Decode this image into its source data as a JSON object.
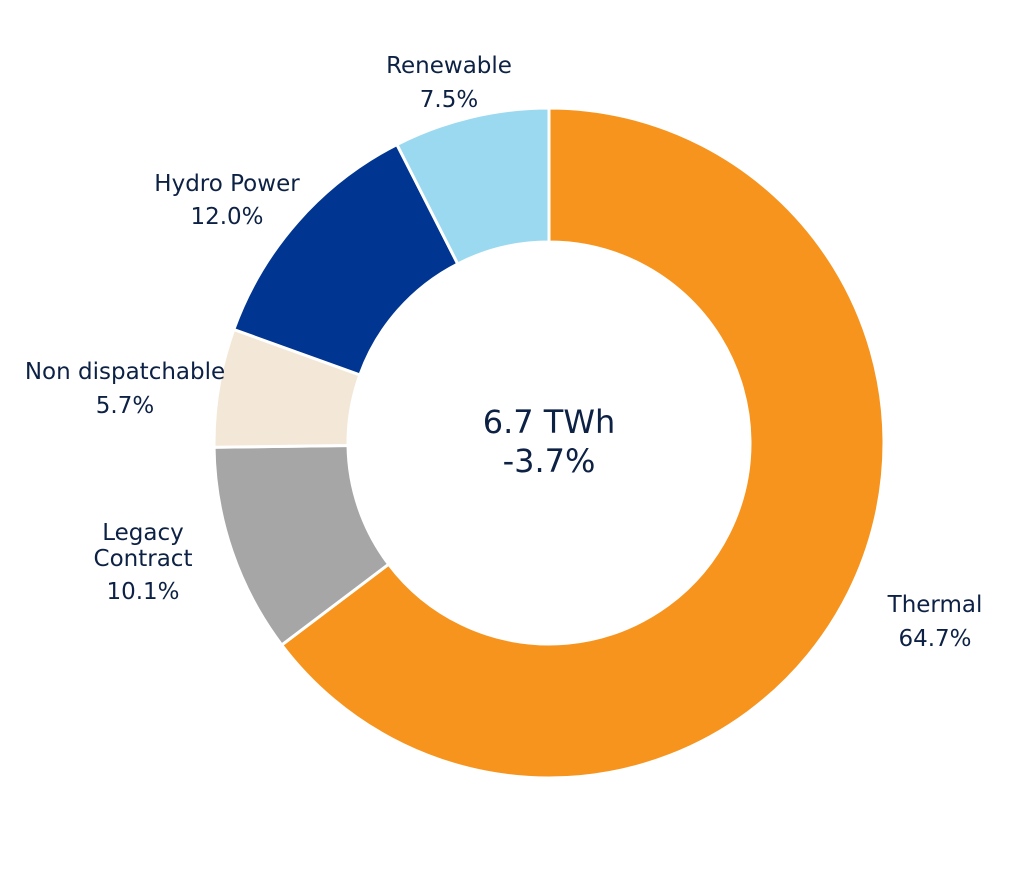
{
  "chart_data": {
    "type": "pie",
    "center_label": {
      "line1": "6.7 TWh",
      "line2": "-3.7%"
    },
    "slices": [
      {
        "name": "Thermal",
        "value": 64.7,
        "value_label": "64.7%",
        "color": "#f7941e"
      },
      {
        "name": "Legacy Contract",
        "name_lines": [
          "Legacy",
          "Contract"
        ],
        "value": 10.1,
        "value_label": "10.1%",
        "color": "#a6a6a6"
      },
      {
        "name": "Non dispatchable",
        "value": 5.7,
        "value_label": "5.7%",
        "color": "#f3e7d7"
      },
      {
        "name": "Hydro Power",
        "value": 12.0,
        "value_label": "12.0%",
        "color": "#003591"
      },
      {
        "name": "Renewable",
        "value": 7.5,
        "value_label": "7.5%",
        "color": "#9ad9f0"
      }
    ]
  }
}
